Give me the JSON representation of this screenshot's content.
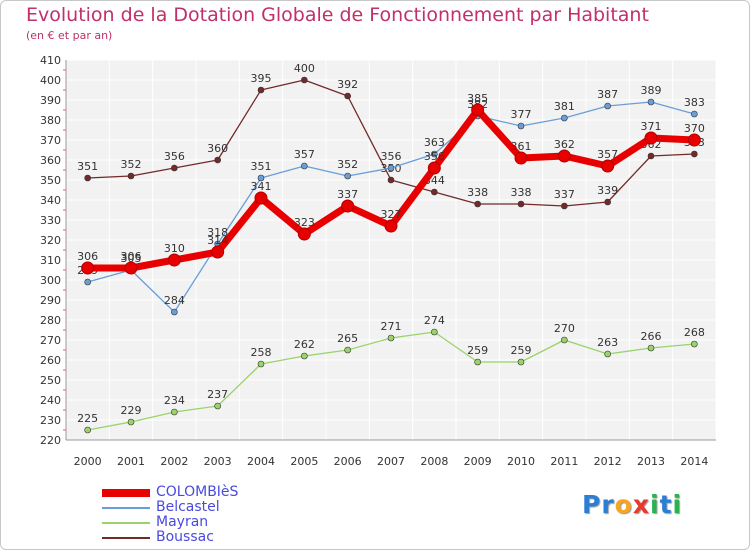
{
  "chart_data": {
    "type": "line",
    "title": "Evolution de la Dotation Globale de Fonctionnement par Habitant",
    "subtitle": "(en € et par an)",
    "x": [
      2000,
      2001,
      2002,
      2003,
      2004,
      2005,
      2006,
      2007,
      2008,
      2009,
      2010,
      2011,
      2012,
      2013,
      2014
    ],
    "ylim": [
      220,
      410
    ],
    "ytick_step": 10,
    "series": [
      {
        "name": "Boussac",
        "color": "#722a2a",
        "values": [
          351,
          352,
          356,
          360,
          395,
          400,
          392,
          350,
          344,
          338,
          338,
          337,
          339,
          362,
          363
        ],
        "labels": [
          "351",
          "352",
          "356",
          "360",
          "395",
          "400",
          "392",
          "350",
          "344",
          "338",
          "338",
          "337",
          "339",
          "362",
          "363"
        ]
      },
      {
        "name": "Mayran",
        "color": "#99d36a",
        "values": [
          225,
          229,
          234,
          237,
          258,
          262,
          265,
          271,
          274,
          259,
          259,
          270,
          263,
          266,
          268
        ],
        "labels": [
          "225",
          "229",
          "234",
          "237",
          "258",
          "262",
          "265",
          "271",
          "274",
          "259",
          "259",
          "270",
          "263",
          "266",
          "268"
        ]
      },
      {
        "name": "Belcastel",
        "color": "#6a9ed6",
        "values": [
          299,
          305,
          284,
          318,
          351,
          357,
          352,
          356,
          363,
          382,
          377,
          381,
          387,
          389,
          383
        ],
        "labels": [
          "299",
          "305",
          "284",
          "318",
          "351",
          "357",
          "352",
          "356",
          "363",
          "382",
          "377",
          "381",
          "387",
          "389",
          "383"
        ]
      },
      {
        "name": "COLOMBIèS",
        "color": "#e80000",
        "values": [
          306,
          306,
          310,
          314,
          341,
          323,
          337,
          327,
          356,
          385,
          361,
          362,
          357,
          371,
          370
        ],
        "labels": [
          "306",
          "306",
          "310",
          "314",
          "341",
          "323",
          "337",
          "327",
          "356",
          "385",
          "361",
          "362",
          "357",
          "371",
          "370"
        ]
      }
    ]
  },
  "legend": [
    {
      "name": "COLOMBIèS",
      "color": "#e80000"
    },
    {
      "name": "Belcastel",
      "color": "#6a9ed6"
    },
    {
      "name": "Mayran",
      "color": "#99d36a"
    },
    {
      "name": "Boussac",
      "color": "#722a2a"
    }
  ],
  "logo": {
    "letters": [
      "P",
      "r",
      "o",
      "x",
      "i",
      "t",
      "i"
    ],
    "colors": [
      "#2a7fd4",
      "#2a7fd4",
      "#f5a623",
      "#e8392f",
      "#2ab24f",
      "#2a7fd4",
      "#2ab24f"
    ]
  }
}
